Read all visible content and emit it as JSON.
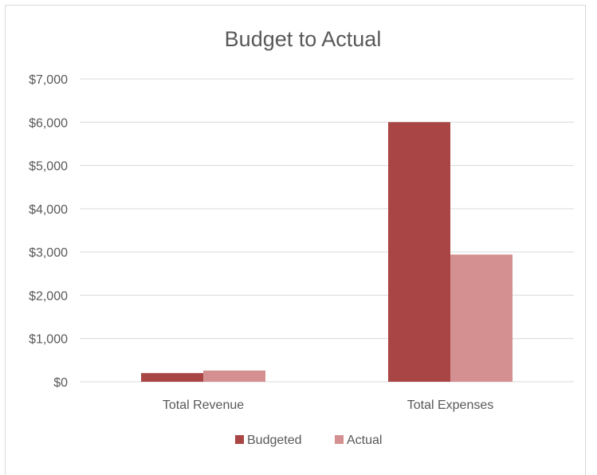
{
  "chart_data": {
    "type": "bar",
    "title": "Budget to Actual",
    "categories": [
      "Total Revenue",
      "Total Expenses"
    ],
    "series": [
      {
        "name": "Budgeted",
        "values": [
          200,
          6000
        ],
        "color": "#a94544"
      },
      {
        "name": "Actual",
        "values": [
          260,
          2940
        ],
        "color": "#d49090"
      }
    ],
    "y_ticks": [
      "$0",
      "$1,000",
      "$2,000",
      "$3,000",
      "$4,000",
      "$5,000",
      "$6,000",
      "$7,000"
    ],
    "ylim": [
      0,
      7000
    ],
    "grid": true,
    "legend_position": "bottom"
  }
}
